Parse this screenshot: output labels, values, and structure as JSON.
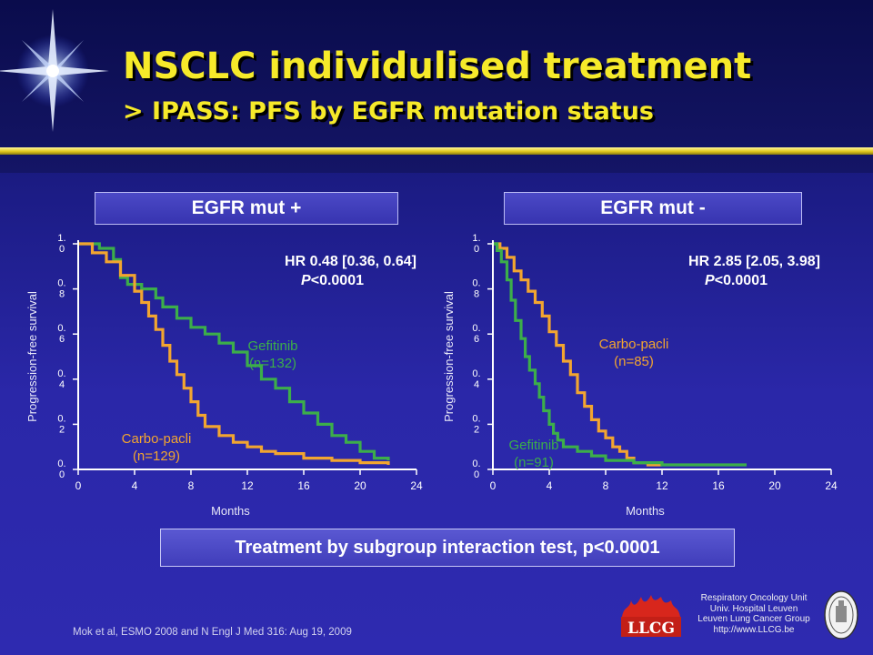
{
  "slide": {
    "title": "NSCLC individulised treatment",
    "subtitle": "> IPASS:  PFS by EGFR mutation status",
    "interaction_note": "Treatment by subgroup interaction test, p<0.0001",
    "citation": "Mok et al, ESMO 2008 and N Engl J Med 316: Aug 19, 2009",
    "affiliation": [
      "Respiratory Oncology Unit",
      "Univ. Hospital Leuven",
      "Leuven Lung Cancer Group",
      "http://www.LLCG.be"
    ],
    "logo_text": "LLCG",
    "colors": {
      "title": "#f6ea2a",
      "gefitinib": "#3cae4a",
      "carbo_pacli": "#f2a530",
      "axis": "#ffffff"
    }
  },
  "chart_data": [
    {
      "type": "line",
      "panel_label": "EGFR mut +",
      "xlabel": "Months",
      "ylabel": "Progression-free survival",
      "xlim": [
        0,
        24
      ],
      "ylim": [
        0,
        1
      ],
      "x_ticks": [
        0,
        4,
        8,
        12,
        16,
        20,
        24
      ],
      "y_ticks": [
        0,
        0.2,
        0.4,
        0.6,
        0.8,
        1.0
      ],
      "y_tick_labels": [
        "0.\n0",
        "0.\n2",
        "0.\n4",
        "0.\n6",
        "0.\n8",
        "1.\n0"
      ],
      "hr_text": "HR 0.48 [0.36, 0.64]",
      "p_text": "P<0.0001",
      "series": [
        {
          "name": "Gefitinib",
          "n_label": "(n=132)",
          "color": "#3cae4a",
          "x": [
            0,
            1.5,
            2.5,
            3,
            3.5,
            4.5,
            5.5,
            6,
            7,
            8,
            9,
            10,
            11,
            12,
            13,
            14,
            15,
            16,
            17,
            18,
            19,
            20,
            21,
            22
          ],
          "y": [
            1.0,
            0.98,
            0.93,
            0.85,
            0.82,
            0.8,
            0.76,
            0.72,
            0.67,
            0.63,
            0.6,
            0.56,
            0.52,
            0.46,
            0.4,
            0.36,
            0.3,
            0.25,
            0.2,
            0.15,
            0.12,
            0.08,
            0.05,
            0.04
          ]
        },
        {
          "name": "Carbo-pacli",
          "n_label": "(n=129)",
          "color": "#f2a530",
          "x": [
            0,
            1,
            2,
            3,
            4,
            4.5,
            5,
            5.5,
            6,
            6.5,
            7,
            7.5,
            8,
            8.5,
            9,
            10,
            11,
            12,
            13,
            14,
            16,
            18,
            20,
            22
          ],
          "y": [
            1.0,
            0.96,
            0.92,
            0.86,
            0.79,
            0.74,
            0.68,
            0.62,
            0.55,
            0.48,
            0.42,
            0.36,
            0.3,
            0.24,
            0.19,
            0.15,
            0.12,
            0.1,
            0.08,
            0.07,
            0.05,
            0.04,
            0.03,
            0.02
          ]
        }
      ]
    },
    {
      "type": "line",
      "panel_label": "EGFR mut -",
      "xlabel": "Months",
      "ylabel": "Progression-free survival",
      "xlim": [
        0,
        24
      ],
      "ylim": [
        0,
        1
      ],
      "x_ticks": [
        0,
        4,
        8,
        12,
        16,
        20,
        24
      ],
      "y_ticks": [
        0,
        0.2,
        0.4,
        0.6,
        0.8,
        1.0
      ],
      "y_tick_labels": [
        "0.\n0",
        "0.\n2",
        "0.\n4",
        "0.\n6",
        "0.\n8",
        "1.\n0"
      ],
      "hr_text": "HR 2.85 [2.05, 3.98]",
      "p_text": "P<0.0001",
      "series": [
        {
          "name": "Carbo-pacli",
          "n_label": "(n=85)",
          "color": "#f2a530",
          "x": [
            0,
            0.5,
            1,
            1.5,
            2,
            2.5,
            3,
            3.5,
            4,
            4.5,
            5,
            5.5,
            6,
            6.5,
            7,
            7.5,
            8,
            8.5,
            9,
            9.5,
            10,
            11,
            12
          ],
          "y": [
            1.0,
            0.98,
            0.94,
            0.88,
            0.84,
            0.79,
            0.74,
            0.68,
            0.61,
            0.55,
            0.48,
            0.42,
            0.34,
            0.28,
            0.22,
            0.17,
            0.14,
            0.1,
            0.08,
            0.05,
            0.03,
            0.02,
            0.02
          ]
        },
        {
          "name": "Gefitinib",
          "n_label": "(n=91)",
          "color": "#3cae4a",
          "x": [
            0,
            0.3,
            0.6,
            1,
            1.3,
            1.6,
            2,
            2.3,
            2.6,
            3,
            3.3,
            3.6,
            4,
            4.3,
            4.6,
            5,
            6,
            7,
            8,
            10,
            12,
            14,
            16,
            18
          ],
          "y": [
            1.0,
            0.97,
            0.92,
            0.84,
            0.75,
            0.66,
            0.58,
            0.5,
            0.44,
            0.38,
            0.32,
            0.26,
            0.2,
            0.16,
            0.13,
            0.1,
            0.08,
            0.06,
            0.04,
            0.03,
            0.02,
            0.02,
            0.02,
            0.02
          ]
        }
      ]
    }
  ]
}
